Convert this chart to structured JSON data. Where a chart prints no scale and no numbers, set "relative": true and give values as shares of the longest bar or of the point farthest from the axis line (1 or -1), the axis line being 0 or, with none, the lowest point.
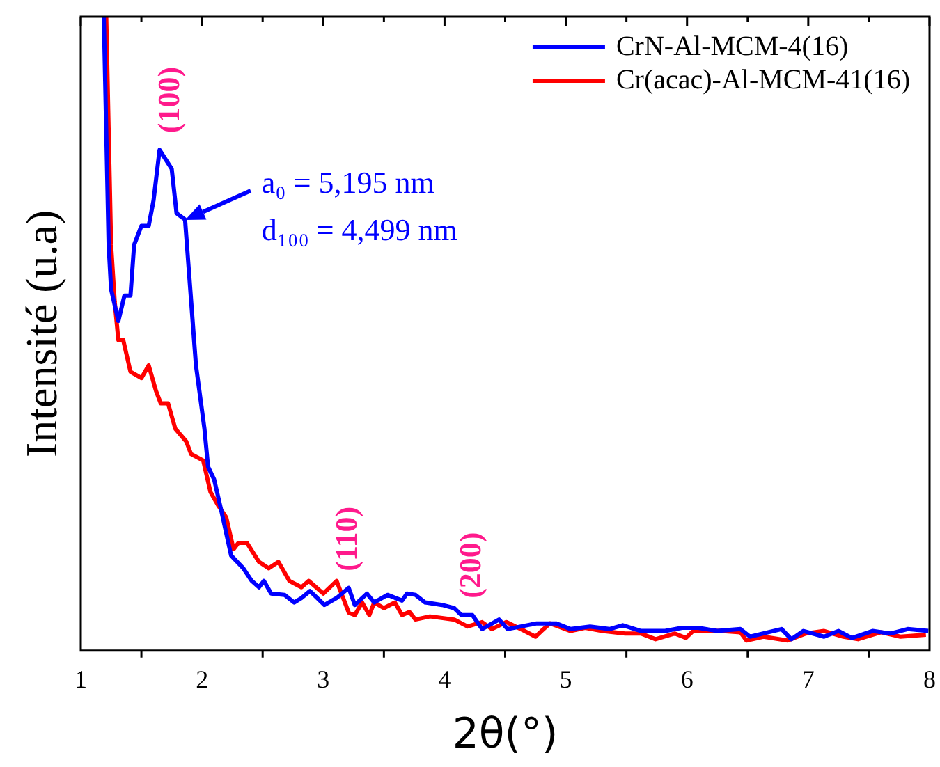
{
  "chart_data": {
    "type": "line",
    "relative": true,
    "xlabel": "2θ(°)",
    "ylabel": "Intensité (u.a)",
    "xlim": [
      1,
      8
    ],
    "xticks": [
      1,
      2,
      3,
      4,
      5,
      6,
      7,
      8
    ],
    "legend": "top right",
    "marker": "none",
    "line_style": "solid",
    "grid": false,
    "series": [
      {
        "name": "CrN-Al-MCM-4(16)",
        "color": "#0000ff",
        "x": [
          1.19,
          1.23,
          1.25,
          1.31,
          1.36,
          1.41,
          1.44,
          1.5,
          1.56,
          1.6,
          1.65,
          1.75,
          1.79,
          1.86,
          1.95,
          2.02,
          2.05,
          2.1,
          2.16,
          2.24,
          2.34,
          2.41,
          2.47,
          2.51,
          2.57,
          2.68,
          2.76,
          2.82,
          2.89,
          3.01,
          3.11,
          3.21,
          3.26,
          3.36,
          3.42,
          3.53,
          3.65,
          3.69,
          3.76,
          3.84,
          3.98,
          4.08,
          4.14,
          4.23,
          4.31,
          4.45,
          4.52,
          4.76,
          4.92,
          5.04,
          5.2,
          5.36,
          5.47,
          5.62,
          5.82,
          5.96,
          6.09,
          6.25,
          6.44,
          6.52,
          6.67,
          6.78,
          6.86,
          6.96,
          7.13,
          7.25,
          7.36,
          7.53,
          7.68,
          7.82,
          7.99
        ],
        "values": [
          1.0,
          0.64,
          0.57,
          0.52,
          0.56,
          0.56,
          0.64,
          0.67,
          0.67,
          0.71,
          0.79,
          0.76,
          0.69,
          0.68,
          0.45,
          0.35,
          0.29,
          0.27,
          0.22,
          0.15,
          0.13,
          0.11,
          0.1,
          0.11,
          0.09,
          0.088,
          0.076,
          0.083,
          0.094,
          0.072,
          0.083,
          0.099,
          0.072,
          0.09,
          0.076,
          0.088,
          0.079,
          0.09,
          0.088,
          0.076,
          0.072,
          0.067,
          0.056,
          0.056,
          0.034,
          0.049,
          0.034,
          0.043,
          0.043,
          0.034,
          0.038,
          0.034,
          0.04,
          0.031,
          0.031,
          0.036,
          0.036,
          0.031,
          0.034,
          0.022,
          0.029,
          0.034,
          0.018,
          0.031,
          0.022,
          0.031,
          0.02,
          0.031,
          0.027,
          0.034,
          0.031
        ]
      },
      {
        "name": "Cr(acac)-Al-MCM-41(16)",
        "color": "#ff0000",
        "x": [
          1.21,
          1.25,
          1.28,
          1.31,
          1.35,
          1.41,
          1.5,
          1.56,
          1.62,
          1.66,
          1.72,
          1.78,
          1.87,
          1.91,
          2.01,
          2.07,
          2.13,
          2.2,
          2.26,
          2.3,
          2.37,
          2.47,
          2.55,
          2.63,
          2.72,
          2.82,
          2.88,
          3.0,
          3.11,
          3.21,
          3.26,
          3.32,
          3.38,
          3.42,
          3.5,
          3.59,
          3.65,
          3.71,
          3.76,
          3.88,
          4.08,
          4.19,
          4.31,
          4.39,
          4.51,
          4.66,
          4.75,
          4.8,
          4.87,
          5.04,
          5.16,
          5.3,
          5.49,
          5.62,
          5.74,
          5.9,
          5.99,
          6.05,
          6.28,
          6.44,
          6.49,
          6.63,
          6.83,
          6.98,
          7.13,
          7.29,
          7.41,
          7.6,
          7.76,
          7.97
        ],
        "values": [
          1.0,
          0.64,
          0.55,
          0.49,
          0.49,
          0.44,
          0.43,
          0.45,
          0.41,
          0.39,
          0.39,
          0.35,
          0.33,
          0.31,
          0.3,
          0.25,
          0.23,
          0.21,
          0.16,
          0.17,
          0.17,
          0.14,
          0.13,
          0.14,
          0.11,
          0.1,
          0.11,
          0.09,
          0.11,
          0.06,
          0.056,
          0.076,
          0.056,
          0.076,
          0.067,
          0.076,
          0.056,
          0.061,
          0.049,
          0.054,
          0.049,
          0.038,
          0.045,
          0.034,
          0.045,
          0.031,
          0.022,
          0.031,
          0.043,
          0.031,
          0.036,
          0.031,
          0.027,
          0.027,
          0.018,
          0.027,
          0.02,
          0.031,
          0.031,
          0.029,
          0.016,
          0.022,
          0.016,
          0.027,
          0.031,
          0.022,
          0.018,
          0.029,
          0.022,
          0.025
        ]
      }
    ],
    "annotations": [
      {
        "text": "(100)",
        "x": 1.65,
        "y": 0.79
      },
      {
        "text": "(110)",
        "x": 3.21,
        "y": 0.099
      },
      {
        "text": "(200)",
        "x": 4.23,
        "y": 0.056
      },
      {
        "text": "a₀ = 5,195 nm",
        "x": 1.86,
        "y": 0.68
      },
      "d₁₀₀ = 4,499 nm"
    ]
  }
}
